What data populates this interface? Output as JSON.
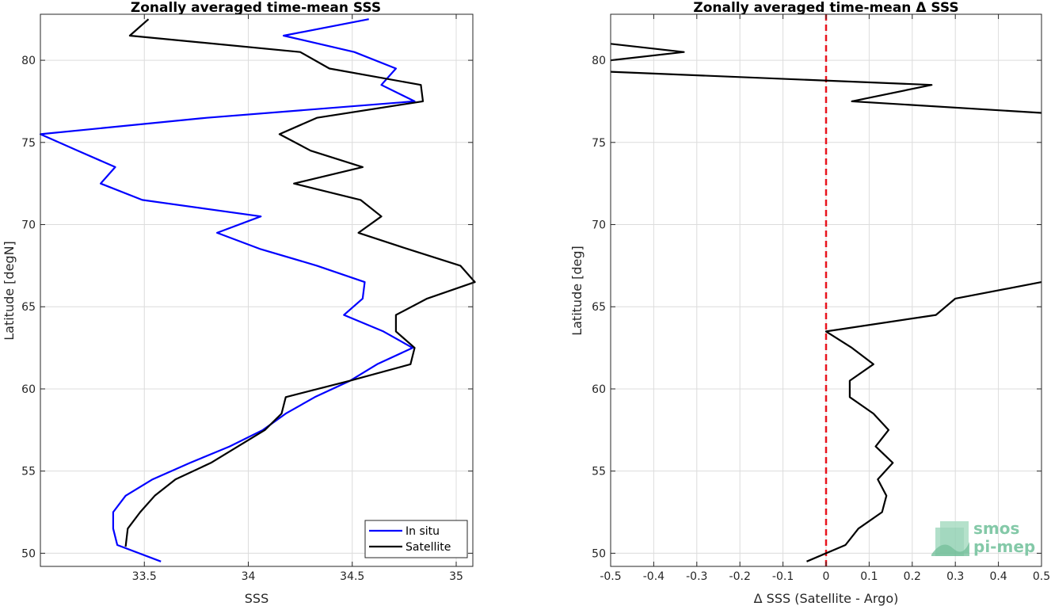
{
  "chart_data": [
    {
      "type": "line",
      "title": "Zonally averaged time-mean SSS",
      "xlabel": "SSS",
      "ylabel": "Latitude [degN]",
      "xlim": [
        33.0,
        35.08
      ],
      "ylim": [
        49.2,
        82.8
      ],
      "xticks": [
        33.5,
        34,
        34.5,
        35
      ],
      "xtick_labels": [
        "33.5",
        "34",
        "34.5",
        "35"
      ],
      "yticks": [
        50,
        55,
        60,
        65,
        70,
        75,
        80
      ],
      "ytick_labels": [
        "50",
        "55",
        "60",
        "65",
        "70",
        "75",
        "80"
      ],
      "grid": true,
      "legend_position": "bottom-right",
      "series": [
        {
          "name": "In situ",
          "color": "#0000ff",
          "points": [
            [
              33.58,
              49.5
            ],
            [
              33.37,
              50.5
            ],
            [
              33.35,
              51.5
            ],
            [
              33.35,
              52.5
            ],
            [
              33.41,
              53.5
            ],
            [
              33.54,
              54.5
            ],
            [
              33.72,
              55.5
            ],
            [
              33.91,
              56.5
            ],
            [
              34.07,
              57.5
            ],
            [
              34.18,
              58.5
            ],
            [
              34.32,
              59.5
            ],
            [
              34.49,
              60.5
            ],
            [
              34.62,
              61.5
            ],
            [
              34.79,
              62.5
            ],
            [
              34.65,
              63.5
            ],
            [
              34.46,
              64.5
            ],
            [
              34.55,
              65.5
            ],
            [
              34.56,
              66.5
            ],
            [
              34.33,
              67.5
            ],
            [
              34.06,
              68.5
            ],
            [
              33.85,
              69.5
            ],
            [
              34.06,
              70.5
            ],
            [
              33.49,
              71.5
            ],
            [
              33.29,
              72.5
            ],
            [
              33.36,
              73.5
            ],
            [
              33.18,
              74.5
            ],
            [
              33.0,
              75.5
            ],
            [
              33.8,
              76.5
            ],
            [
              34.8,
              77.5
            ],
            [
              34.64,
              78.5
            ],
            [
              34.71,
              79.5
            ],
            [
              34.51,
              80.5
            ],
            [
              34.17,
              81.5
            ],
            [
              34.58,
              82.5
            ]
          ]
        },
        {
          "name": "Satellite",
          "color": "#000000",
          "points": [
            [
              33.41,
              50.4
            ],
            [
              33.42,
              51.5
            ],
            [
              33.48,
              52.5
            ],
            [
              33.55,
              53.5
            ],
            [
              33.65,
              54.5
            ],
            [
              33.82,
              55.5
            ],
            [
              33.95,
              56.5
            ],
            [
              34.08,
              57.5
            ],
            [
              34.16,
              58.5
            ],
            [
              34.18,
              59.5
            ],
            [
              34.49,
              60.5
            ],
            [
              34.78,
              61.5
            ],
            [
              34.8,
              62.5
            ],
            [
              34.71,
              63.5
            ],
            [
              34.71,
              64.5
            ],
            [
              34.86,
              65.5
            ],
            [
              35.09,
              66.5
            ],
            [
              35.02,
              67.5
            ],
            [
              34.77,
              68.5
            ],
            [
              34.53,
              69.5
            ],
            [
              34.64,
              70.5
            ],
            [
              34.54,
              71.5
            ],
            [
              34.22,
              72.5
            ],
            [
              34.55,
              73.5
            ],
            [
              34.3,
              74.5
            ],
            [
              34.15,
              75.5
            ],
            [
              34.33,
              76.5
            ],
            [
              34.84,
              77.5
            ],
            [
              34.83,
              78.5
            ],
            [
              34.39,
              79.5
            ],
            [
              34.25,
              80.5
            ],
            [
              33.43,
              81.5
            ],
            [
              33.52,
              82.5
            ]
          ]
        }
      ]
    },
    {
      "type": "line",
      "title": "Zonally averaged time-mean Δ SSS",
      "xlabel": "Δ SSS (Satellite - Argo)",
      "ylabel": "Latitude [deg]",
      "xlim": [
        -0.5,
        0.5
      ],
      "ylim": [
        49.2,
        82.8
      ],
      "xticks": [
        -0.5,
        -0.4,
        -0.3,
        -0.2,
        -0.1,
        0,
        0.1,
        0.2,
        0.3,
        0.4,
        0.5
      ],
      "xtick_labels": [
        "-0.5",
        "-0.4",
        "-0.3",
        "-0.2",
        "-0.1",
        "0",
        "0.1",
        "0.2",
        "0.3",
        "0.4",
        "0.5"
      ],
      "yticks": [
        50,
        55,
        60,
        65,
        70,
        75,
        80
      ],
      "ytick_labels": [
        "50",
        "55",
        "60",
        "65",
        "70",
        "75",
        "80"
      ],
      "grid": true,
      "reference_line": {
        "x": 0,
        "color": "#e8141e",
        "style": "dashed"
      },
      "series": [
        {
          "color": "#000000",
          "segments": [
            [
              [
                -0.045,
                49.5
              ],
              [
                0.045,
                50.5
              ],
              [
                0.075,
                51.5
              ],
              [
                0.13,
                52.5
              ],
              [
                0.14,
                53.5
              ],
              [
                0.12,
                54.5
              ],
              [
                0.155,
                55.5
              ],
              [
                0.115,
                56.5
              ],
              [
                0.145,
                57.5
              ],
              [
                0.11,
                58.5
              ],
              [
                0.055,
                59.5
              ],
              [
                0.055,
                60.5
              ],
              [
                0.11,
                61.5
              ],
              [
                0.06,
                62.5
              ],
              [
                0.0,
                63.5
              ],
              [
                0.255,
                64.5
              ],
              [
                0.3,
                65.5
              ],
              [
                0.5,
                66.5
              ]
            ],
            [
              [
                0.5,
                76.8
              ],
              [
                0.06,
                77.5
              ],
              [
                0.245,
                78.5
              ],
              [
                -0.5,
                79.3
              ]
            ],
            [
              [
                -0.5,
                80.0
              ],
              [
                -0.33,
                80.5
              ],
              [
                -0.5,
                81.0
              ]
            ]
          ]
        }
      ]
    }
  ],
  "legend": {
    "items": [
      {
        "label": "In situ",
        "color": "#0000ff"
      },
      {
        "label": "Satellite",
        "color": "#000000"
      }
    ]
  },
  "logo": {
    "line1": "smos",
    "line2": "pi-mep",
    "color": "#6fc09a"
  }
}
